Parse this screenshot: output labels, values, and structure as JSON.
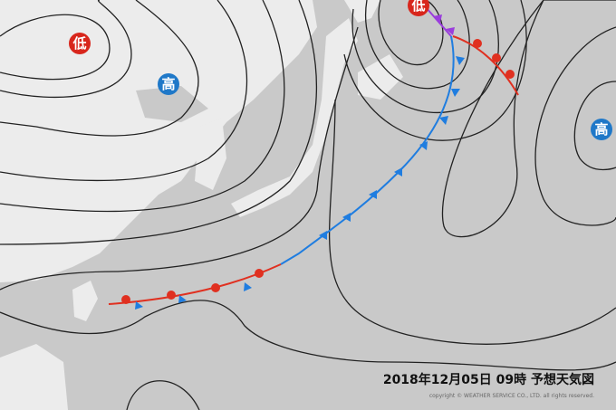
{
  "pressure_centers": [
    {
      "label": "低"
    },
    {
      "label": "高"
    },
    {
      "label": "低"
    },
    {
      "label": "高"
    }
  ],
  "caption": {
    "title": "2018年12月05日 09時 予想天気図",
    "copyright": "copyright © WEATHER SERVICE CO., LTD. all rights reserved."
  }
}
